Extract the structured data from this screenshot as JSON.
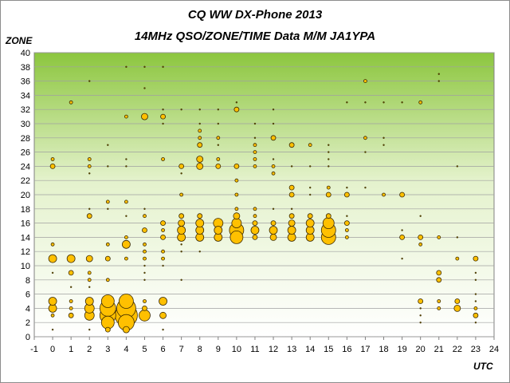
{
  "chart_data": {
    "type": "scatter",
    "title": "CQ WW DX-Phone 2013",
    "subtitle": "14MHz QSO/ZONE/TIME Data M/M JA1YPA",
    "xlabel": "UTC",
    "ylabel": "ZONE",
    "xlim": [
      -1,
      24
    ],
    "ylim": [
      0,
      40
    ],
    "xticks": [
      "-1",
      "0",
      "1",
      "2",
      "3",
      "4",
      "5",
      "6",
      "7",
      "8",
      "9",
      "10",
      "11",
      "12",
      "13",
      "14",
      "15",
      "16",
      "17",
      "18",
      "19",
      "20",
      "21",
      "22",
      "23",
      "24"
    ],
    "yticks": [
      "0",
      "2",
      "4",
      "6",
      "8",
      "10",
      "12",
      "14",
      "16",
      "18",
      "20",
      "22",
      "24",
      "26",
      "28",
      "30",
      "32",
      "34",
      "36",
      "38",
      "40"
    ],
    "grid": true,
    "background": "gradient green (top) to white (bottom)",
    "marker_color": "#ffc000",
    "marker_edge_color": "#3a2a00",
    "points": [
      {
        "x": 0,
        "y": 1,
        "r": 1
      },
      {
        "x": 0,
        "y": 3,
        "r": 2
      },
      {
        "x": 0,
        "y": 4,
        "r": 5
      },
      {
        "x": 0,
        "y": 5,
        "r": 5
      },
      {
        "x": 0,
        "y": 9,
        "r": 1
      },
      {
        "x": 0,
        "y": 11,
        "r": 5
      },
      {
        "x": 0,
        "y": 13,
        "r": 2
      },
      {
        "x": 0,
        "y": 24,
        "r": 3
      },
      {
        "x": 0,
        "y": 25,
        "r": 2
      },
      {
        "x": 1,
        "y": 3,
        "r": 3
      },
      {
        "x": 1,
        "y": 4,
        "r": 2
      },
      {
        "x": 1,
        "y": 5,
        "r": 2
      },
      {
        "x": 1,
        "y": 7,
        "r": 1
      },
      {
        "x": 1,
        "y": 9,
        "r": 3
      },
      {
        "x": 1,
        "y": 11,
        "r": 5
      },
      {
        "x": 1,
        "y": 33,
        "r": 2
      },
      {
        "x": 2,
        "y": 1,
        "r": 1
      },
      {
        "x": 2,
        "y": 3,
        "r": 6
      },
      {
        "x": 2,
        "y": 4,
        "r": 6
      },
      {
        "x": 2,
        "y": 5,
        "r": 5
      },
      {
        "x": 2,
        "y": 7,
        "r": 1
      },
      {
        "x": 2,
        "y": 8,
        "r": 2
      },
      {
        "x": 2,
        "y": 9,
        "r": 2
      },
      {
        "x": 2,
        "y": 11,
        "r": 4
      },
      {
        "x": 2,
        "y": 17,
        "r": 3
      },
      {
        "x": 2,
        "y": 18,
        "r": 1
      },
      {
        "x": 2,
        "y": 23,
        "r": 1
      },
      {
        "x": 2,
        "y": 24,
        "r": 2
      },
      {
        "x": 2,
        "y": 25,
        "r": 2
      },
      {
        "x": 2,
        "y": 36,
        "r": 1
      },
      {
        "x": 3,
        "y": 1,
        "r": 3
      },
      {
        "x": 3,
        "y": 2,
        "r": 8
      },
      {
        "x": 3,
        "y": 3,
        "r": 10
      },
      {
        "x": 3,
        "y": 4,
        "r": 10
      },
      {
        "x": 3,
        "y": 5,
        "r": 8
      },
      {
        "x": 3,
        "y": 8,
        "r": 2
      },
      {
        "x": 3,
        "y": 11,
        "r": 3
      },
      {
        "x": 3,
        "y": 13,
        "r": 2
      },
      {
        "x": 3,
        "y": 18,
        "r": 1
      },
      {
        "x": 3,
        "y": 19,
        "r": 2
      },
      {
        "x": 3,
        "y": 24,
        "r": 1
      },
      {
        "x": 3,
        "y": 27,
        "r": 1
      },
      {
        "x": 4,
        "y": 1,
        "r": 4
      },
      {
        "x": 4,
        "y": 2,
        "r": 10
      },
      {
        "x": 4,
        "y": 3,
        "r": 14
      },
      {
        "x": 4,
        "y": 4,
        "r": 12
      },
      {
        "x": 4,
        "y": 5,
        "r": 9
      },
      {
        "x": 4,
        "y": 11,
        "r": 2
      },
      {
        "x": 4,
        "y": 13,
        "r": 5
      },
      {
        "x": 4,
        "y": 14,
        "r": 2
      },
      {
        "x": 4,
        "y": 17,
        "r": 1
      },
      {
        "x": 4,
        "y": 19,
        "r": 2
      },
      {
        "x": 4,
        "y": 24,
        "r": 1
      },
      {
        "x": 4,
        "y": 25,
        "r": 1
      },
      {
        "x": 4,
        "y": 31,
        "r": 2
      },
      {
        "x": 4,
        "y": 38,
        "r": 1
      },
      {
        "x": 5,
        "y": 3,
        "r": 7
      },
      {
        "x": 5,
        "y": 4,
        "r": 3
      },
      {
        "x": 5,
        "y": 5,
        "r": 2
      },
      {
        "x": 5,
        "y": 8,
        "r": 1
      },
      {
        "x": 5,
        "y": 9,
        "r": 1
      },
      {
        "x": 5,
        "y": 10,
        "r": 1
      },
      {
        "x": 5,
        "y": 11,
        "r": 2
      },
      {
        "x": 5,
        "y": 12,
        "r": 2
      },
      {
        "x": 5,
        "y": 13,
        "r": 2
      },
      {
        "x": 5,
        "y": 15,
        "r": 3
      },
      {
        "x": 5,
        "y": 17,
        "r": 2
      },
      {
        "x": 5,
        "y": 18,
        "r": 1
      },
      {
        "x": 5,
        "y": 31,
        "r": 4
      },
      {
        "x": 5,
        "y": 35,
        "r": 1
      },
      {
        "x": 5,
        "y": 38,
        "r": 1
      },
      {
        "x": 6,
        "y": 1,
        "r": 1
      },
      {
        "x": 6,
        "y": 3,
        "r": 4
      },
      {
        "x": 6,
        "y": 5,
        "r": 5
      },
      {
        "x": 6,
        "y": 10,
        "r": 1
      },
      {
        "x": 6,
        "y": 11,
        "r": 2
      },
      {
        "x": 6,
        "y": 12,
        "r": 2
      },
      {
        "x": 6,
        "y": 14,
        "r": 3
      },
      {
        "x": 6,
        "y": 15,
        "r": 2
      },
      {
        "x": 6,
        "y": 16,
        "r": 3
      },
      {
        "x": 6,
        "y": 25,
        "r": 2
      },
      {
        "x": 6,
        "y": 30,
        "r": 1
      },
      {
        "x": 6,
        "y": 31,
        "r": 3
      },
      {
        "x": 6,
        "y": 32,
        "r": 1
      },
      {
        "x": 6,
        "y": 38,
        "r": 1
      },
      {
        "x": 7,
        "y": 8,
        "r": 1
      },
      {
        "x": 7,
        "y": 12,
        "r": 1
      },
      {
        "x": 7,
        "y": 13,
        "r": 1
      },
      {
        "x": 7,
        "y": 14,
        "r": 5
      },
      {
        "x": 7,
        "y": 15,
        "r": 5
      },
      {
        "x": 7,
        "y": 16,
        "r": 4
      },
      {
        "x": 7,
        "y": 17,
        "r": 3
      },
      {
        "x": 7,
        "y": 20,
        "r": 2
      },
      {
        "x": 7,
        "y": 23,
        "r": 1
      },
      {
        "x": 7,
        "y": 24,
        "r": 3
      },
      {
        "x": 7,
        "y": 32,
        "r": 1
      },
      {
        "x": 8,
        "y": 12,
        "r": 1
      },
      {
        "x": 8,
        "y": 14,
        "r": 5
      },
      {
        "x": 8,
        "y": 15,
        "r": 5
      },
      {
        "x": 8,
        "y": 16,
        "r": 5
      },
      {
        "x": 8,
        "y": 17,
        "r": 3
      },
      {
        "x": 8,
        "y": 24,
        "r": 4
      },
      {
        "x": 8,
        "y": 25,
        "r": 4
      },
      {
        "x": 8,
        "y": 27,
        "r": 3
      },
      {
        "x": 8,
        "y": 28,
        "r": 2
      },
      {
        "x": 8,
        "y": 29,
        "r": 2
      },
      {
        "x": 8,
        "y": 30,
        "r": 1
      },
      {
        "x": 8,
        "y": 32,
        "r": 1
      },
      {
        "x": 9,
        "y": 14,
        "r": 5
      },
      {
        "x": 9,
        "y": 15,
        "r": 5
      },
      {
        "x": 9,
        "y": 16,
        "r": 6
      },
      {
        "x": 9,
        "y": 24,
        "r": 3
      },
      {
        "x": 9,
        "y": 25,
        "r": 2
      },
      {
        "x": 9,
        "y": 27,
        "r": 1
      },
      {
        "x": 9,
        "y": 28,
        "r": 2
      },
      {
        "x": 9,
        "y": 30,
        "r": 1
      },
      {
        "x": 9,
        "y": 32,
        "r": 1
      },
      {
        "x": 10,
        "y": 14,
        "r": 8
      },
      {
        "x": 10,
        "y": 15,
        "r": 9
      },
      {
        "x": 10,
        "y": 16,
        "r": 6
      },
      {
        "x": 10,
        "y": 17,
        "r": 4
      },
      {
        "x": 10,
        "y": 18,
        "r": 2
      },
      {
        "x": 10,
        "y": 20,
        "r": 2
      },
      {
        "x": 10,
        "y": 22,
        "r": 2
      },
      {
        "x": 10,
        "y": 24,
        "r": 3
      },
      {
        "x": 10,
        "y": 32,
        "r": 3
      },
      {
        "x": 10,
        "y": 33,
        "r": 1
      },
      {
        "x": 11,
        "y": 14,
        "r": 3
      },
      {
        "x": 11,
        "y": 15,
        "r": 5
      },
      {
        "x": 11,
        "y": 16,
        "r": 3
      },
      {
        "x": 11,
        "y": 17,
        "r": 2
      },
      {
        "x": 11,
        "y": 18,
        "r": 2
      },
      {
        "x": 11,
        "y": 24,
        "r": 2
      },
      {
        "x": 11,
        "y": 25,
        "r": 2
      },
      {
        "x": 11,
        "y": 26,
        "r": 2
      },
      {
        "x": 11,
        "y": 27,
        "r": 2
      },
      {
        "x": 11,
        "y": 28,
        "r": 1
      },
      {
        "x": 11,
        "y": 30,
        "r": 1
      },
      {
        "x": 12,
        "y": 14,
        "r": 4
      },
      {
        "x": 12,
        "y": 15,
        "r": 5
      },
      {
        "x": 12,
        "y": 16,
        "r": 3
      },
      {
        "x": 12,
        "y": 18,
        "r": 1
      },
      {
        "x": 12,
        "y": 23,
        "r": 2
      },
      {
        "x": 12,
        "y": 24,
        "r": 2
      },
      {
        "x": 12,
        "y": 25,
        "r": 1
      },
      {
        "x": 12,
        "y": 28,
        "r": 3
      },
      {
        "x": 12,
        "y": 30,
        "r": 1
      },
      {
        "x": 12,
        "y": 32,
        "r": 1
      },
      {
        "x": 13,
        "y": 14,
        "r": 5
      },
      {
        "x": 13,
        "y": 15,
        "r": 5
      },
      {
        "x": 13,
        "y": 16,
        "r": 4
      },
      {
        "x": 13,
        "y": 17,
        "r": 3
      },
      {
        "x": 13,
        "y": 18,
        "r": 1
      },
      {
        "x": 13,
        "y": 20,
        "r": 3
      },
      {
        "x": 13,
        "y": 21,
        "r": 3
      },
      {
        "x": 13,
        "y": 24,
        "r": 1
      },
      {
        "x": 13,
        "y": 27,
        "r": 3
      },
      {
        "x": 14,
        "y": 14,
        "r": 5
      },
      {
        "x": 14,
        "y": 15,
        "r": 5
      },
      {
        "x": 14,
        "y": 16,
        "r": 5
      },
      {
        "x": 14,
        "y": 17,
        "r": 3
      },
      {
        "x": 14,
        "y": 20,
        "r": 1
      },
      {
        "x": 14,
        "y": 21,
        "r": 1
      },
      {
        "x": 14,
        "y": 24,
        "r": 1
      },
      {
        "x": 14,
        "y": 27,
        "r": 2
      },
      {
        "x": 15,
        "y": 14,
        "r": 9
      },
      {
        "x": 15,
        "y": 15,
        "r": 9
      },
      {
        "x": 15,
        "y": 16,
        "r": 7
      },
      {
        "x": 15,
        "y": 17,
        "r": 3
      },
      {
        "x": 15,
        "y": 20,
        "r": 3
      },
      {
        "x": 15,
        "y": 21,
        "r": 2
      },
      {
        "x": 15,
        "y": 24,
        "r": 1
      },
      {
        "x": 15,
        "y": 25,
        "r": 1
      },
      {
        "x": 15,
        "y": 26,
        "r": 1
      },
      {
        "x": 15,
        "y": 27,
        "r": 1
      },
      {
        "x": 16,
        "y": 14,
        "r": 2
      },
      {
        "x": 16,
        "y": 15,
        "r": 2
      },
      {
        "x": 16,
        "y": 16,
        "r": 3
      },
      {
        "x": 16,
        "y": 17,
        "r": 1
      },
      {
        "x": 16,
        "y": 20,
        "r": 3
      },
      {
        "x": 16,
        "y": 21,
        "r": 1
      },
      {
        "x": 16,
        "y": 33,
        "r": 1
      },
      {
        "x": 17,
        "y": 21,
        "r": 1
      },
      {
        "x": 17,
        "y": 26,
        "r": 1
      },
      {
        "x": 17,
        "y": 28,
        "r": 2
      },
      {
        "x": 17,
        "y": 33,
        "r": 1
      },
      {
        "x": 17,
        "y": 36,
        "r": 2
      },
      {
        "x": 18,
        "y": 20,
        "r": 2
      },
      {
        "x": 18,
        "y": 27,
        "r": 1
      },
      {
        "x": 18,
        "y": 28,
        "r": 1
      },
      {
        "x": 18,
        "y": 33,
        "r": 1
      },
      {
        "x": 19,
        "y": 11,
        "r": 1
      },
      {
        "x": 19,
        "y": 14,
        "r": 3
      },
      {
        "x": 19,
        "y": 15,
        "r": 1
      },
      {
        "x": 19,
        "y": 20,
        "r": 3
      },
      {
        "x": 19,
        "y": 33,
        "r": 1
      },
      {
        "x": 20,
        "y": 2,
        "r": 1
      },
      {
        "x": 20,
        "y": 3,
        "r": 1
      },
      {
        "x": 20,
        "y": 4,
        "r": 1
      },
      {
        "x": 20,
        "y": 5,
        "r": 3
      },
      {
        "x": 20,
        "y": 13,
        "r": 2
      },
      {
        "x": 20,
        "y": 14,
        "r": 3
      },
      {
        "x": 20,
        "y": 17,
        "r": 1
      },
      {
        "x": 20,
        "y": 33,
        "r": 2
      },
      {
        "x": 21,
        "y": 4,
        "r": 2
      },
      {
        "x": 21,
        "y": 5,
        "r": 2
      },
      {
        "x": 21,
        "y": 8,
        "r": 3
      },
      {
        "x": 21,
        "y": 9,
        "r": 3
      },
      {
        "x": 21,
        "y": 14,
        "r": 2
      },
      {
        "x": 21,
        "y": 36,
        "r": 1
      },
      {
        "x": 21,
        "y": 37,
        "r": 1
      },
      {
        "x": 22,
        "y": 4,
        "r": 4
      },
      {
        "x": 22,
        "y": 5,
        "r": 3
      },
      {
        "x": 22,
        "y": 11,
        "r": 2
      },
      {
        "x": 22,
        "y": 14,
        "r": 1
      },
      {
        "x": 22,
        "y": 24,
        "r": 1
      },
      {
        "x": 23,
        "y": 2,
        "r": 1
      },
      {
        "x": 23,
        "y": 3,
        "r": 3
      },
      {
        "x": 23,
        "y": 4,
        "r": 2
      },
      {
        "x": 23,
        "y": 5,
        "r": 1
      },
      {
        "x": 23,
        "y": 6,
        "r": 1
      },
      {
        "x": 23,
        "y": 8,
        "r": 1
      },
      {
        "x": 23,
        "y": 9,
        "r": 1
      },
      {
        "x": 23,
        "y": 11,
        "r": 3
      }
    ]
  }
}
